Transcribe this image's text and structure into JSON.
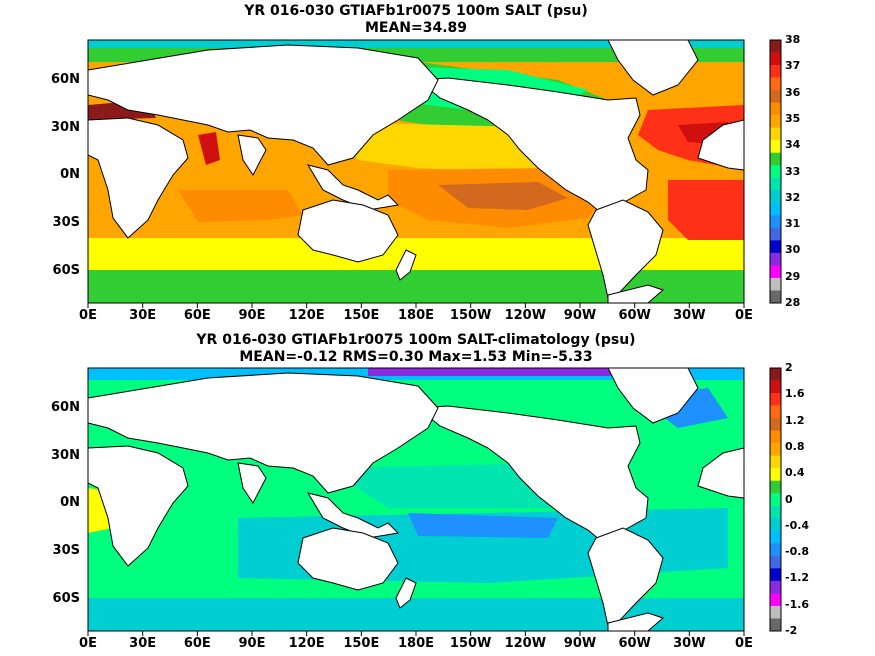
{
  "chart_data": [
    {
      "type": "heatmap",
      "title": "YR 016-030 GTIAFb1r0075 100m SALT (psu)",
      "subtitle": "MEAN=34.89",
      "x_tick_labels": [
        "0E",
        "30E",
        "60E",
        "90E",
        "120E",
        "150E",
        "180E",
        "150W",
        "120W",
        "90W",
        "60W",
        "30W",
        "0E"
      ],
      "y_tick_labels": [
        "60N",
        "30N",
        "0N",
        "30S",
        "60S"
      ],
      "y_tick_values": [
        60,
        30,
        0,
        -30,
        -60
      ],
      "x_range": [
        0,
        360
      ],
      "y_range": [
        -80,
        85
      ],
      "colorbar_labels": [
        "38",
        "37",
        "36",
        "35",
        "34",
        "33",
        "32",
        "31",
        "30",
        "29",
        "28"
      ],
      "colorbar_values": [
        38,
        37,
        36,
        35,
        34,
        33,
        32,
        31,
        30,
        29,
        28
      ],
      "colorbar_colors": [
        "#8b1a1a",
        "#d01010",
        "#ff3018",
        "#ff6a12",
        "#d2691e",
        "#ff8c00",
        "#ffa500",
        "#ffd700",
        "#ffff00",
        "#32cd32",
        "#00ff7f",
        "#00e5b0",
        "#00ced1",
        "#00bfff",
        "#1e90ff",
        "#4169e1",
        "#0000cd",
        "#8a2be2",
        "#ff00ff",
        "#bebebe",
        "#696969"
      ]
    },
    {
      "type": "heatmap",
      "title": "YR 016-030 GTIAFb1r0075 100m SALT-climatology (psu)",
      "subtitle": "MEAN=-0.12   RMS=0.30   Max=1.53   Min=-5.33",
      "x_tick_labels": [
        "0E",
        "30E",
        "60E",
        "90E",
        "120E",
        "150E",
        "180E",
        "150W",
        "120W",
        "90W",
        "60W",
        "30W",
        "0E"
      ],
      "y_tick_labels": [
        "60N",
        "30N",
        "0N",
        "30S",
        "60S"
      ],
      "y_tick_values": [
        60,
        30,
        0,
        -30,
        -60
      ],
      "x_range": [
        0,
        360
      ],
      "y_range": [
        -80,
        85
      ],
      "colorbar_labels": [
        "2",
        "1.6",
        "1.2",
        "0.8",
        "0.4",
        "0",
        "-0.4",
        "-0.8",
        "-1.2",
        "-1.6",
        "-2"
      ],
      "colorbar_values": [
        2,
        1.6,
        1.2,
        0.8,
        0.4,
        0,
        -0.4,
        -0.8,
        -1.2,
        -1.6,
        -2
      ],
      "colorbar_colors": [
        "#8b1a1a",
        "#d01010",
        "#ff3018",
        "#ff6a12",
        "#d2691e",
        "#ff8c00",
        "#ffa500",
        "#ffd700",
        "#ffff00",
        "#32cd32",
        "#00ff7f",
        "#00e5b0",
        "#00ced1",
        "#00bfff",
        "#1e90ff",
        "#4169e1",
        "#0000cd",
        "#8a2be2",
        "#ff00ff",
        "#bebebe",
        "#696969"
      ]
    }
  ]
}
